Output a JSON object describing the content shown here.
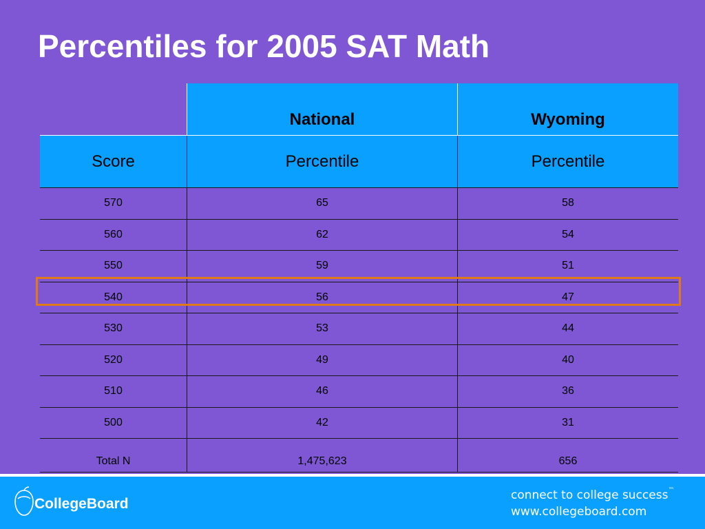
{
  "slide": {
    "title": "Percentiles for 2005 SAT Math"
  },
  "table": {
    "group_headers": [
      "",
      "National",
      "Wyoming"
    ],
    "column_headers": [
      "Score",
      "Percentile",
      "Percentile"
    ],
    "rows": [
      [
        "570",
        "65",
        "58"
      ],
      [
        "560",
        "62",
        "54"
      ],
      [
        "550",
        "59",
        "51"
      ],
      [
        "540",
        "56",
        "47"
      ],
      [
        "530",
        "53",
        "44"
      ],
      [
        "520",
        "49",
        "40"
      ],
      [
        "510",
        "46",
        "36"
      ],
      [
        "500",
        "42",
        "31"
      ]
    ],
    "total_row": [
      "Total N",
      "1,475,623",
      "656"
    ],
    "highlighted_row_score": "540"
  },
  "footer": {
    "logo_text": "CollegeBoard",
    "tagline": "connect to college success",
    "tagline_mark": "™",
    "url": "www.collegeboard.com"
  },
  "colors": {
    "background": "#7f56d4",
    "header_blue": "#0aa0ff",
    "highlight_border": "#e07a18",
    "footer_blue": "#0aa0ff"
  }
}
